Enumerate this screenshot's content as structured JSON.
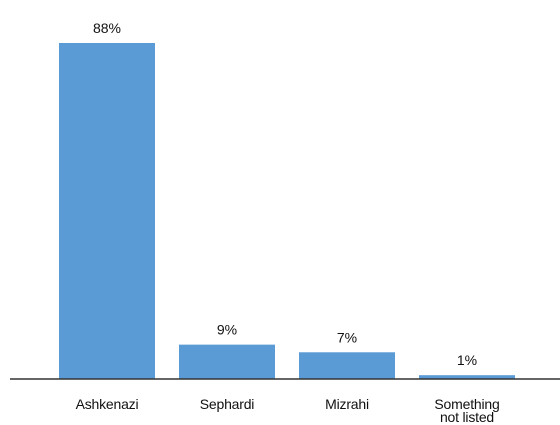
{
  "chart_data": {
    "type": "bar",
    "categories": [
      "Ashkenazi",
      "Sephardi",
      "Mizrahi",
      "Something not listed"
    ],
    "values": [
      88,
      9,
      7,
      1
    ],
    "value_labels": [
      "88%",
      "9%",
      "7%",
      "1%"
    ],
    "color": "#5b9bd5"
  }
}
